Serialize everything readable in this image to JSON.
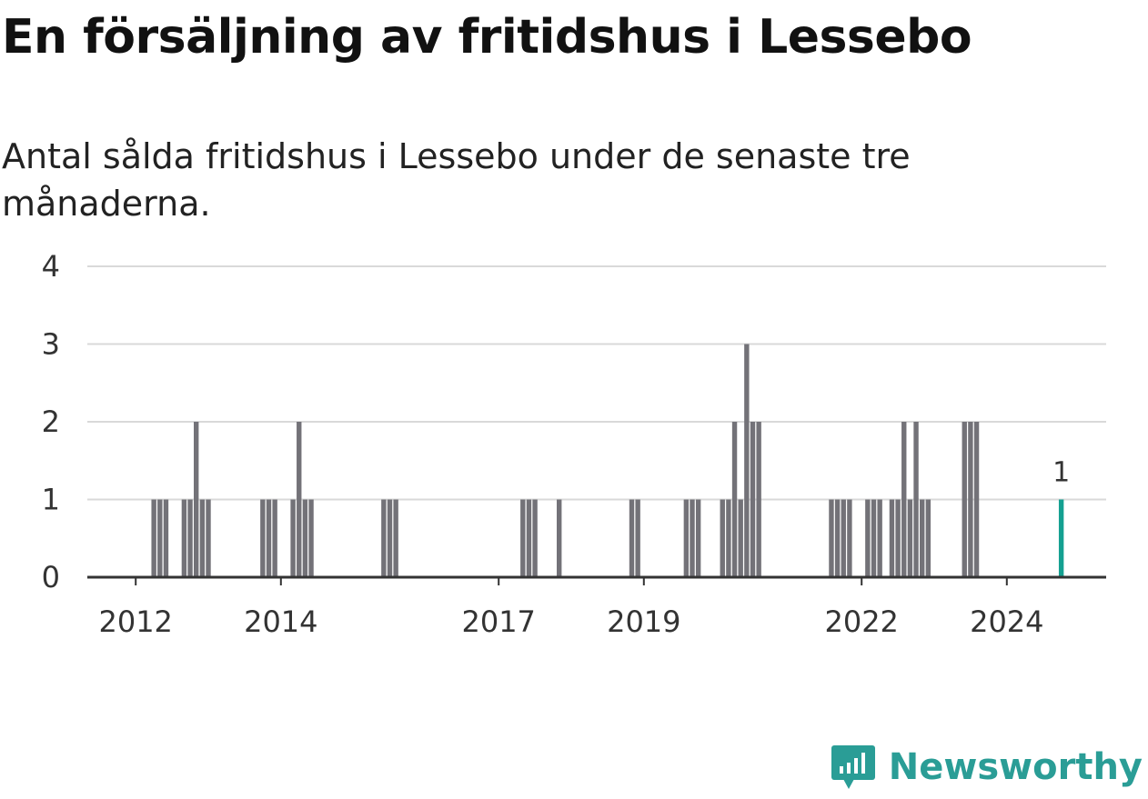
{
  "title": "En försäljning av fritidshus i Lessebo",
  "subtitle": "Antal sålda fritidshus i Lessebo under de senaste tre månaderna.",
  "brand": {
    "name": "Newsworthy",
    "icon": "newsworthy-logo-icon",
    "color": "#2a9d96"
  },
  "colors": {
    "bar": "#737278",
    "highlight": "#14a091",
    "grid": "#d9d9d9",
    "axis": "#333333"
  },
  "chart_data": {
    "type": "bar",
    "x_unit": "month",
    "ylim": [
      0,
      4
    ],
    "yticks": [
      0,
      1,
      2,
      3,
      4
    ],
    "xtick_labels": [
      "2012",
      "2014",
      "2017",
      "2019",
      "2022",
      "2024"
    ],
    "grid": true,
    "annotation": {
      "label": "1",
      "x": "2024-10",
      "y": 1
    },
    "highlight": "2024-10",
    "values": [
      {
        "x": "2012-04",
        "y": 1
      },
      {
        "x": "2012-05",
        "y": 1
      },
      {
        "x": "2012-06",
        "y": 1
      },
      {
        "x": "2012-09",
        "y": 1
      },
      {
        "x": "2012-10",
        "y": 1
      },
      {
        "x": "2012-11",
        "y": 2
      },
      {
        "x": "2012-12",
        "y": 1
      },
      {
        "x": "2013-01",
        "y": 1
      },
      {
        "x": "2013-10",
        "y": 1
      },
      {
        "x": "2013-11",
        "y": 1
      },
      {
        "x": "2013-12",
        "y": 1
      },
      {
        "x": "2014-03",
        "y": 1
      },
      {
        "x": "2014-04",
        "y": 2
      },
      {
        "x": "2014-05",
        "y": 1
      },
      {
        "x": "2014-06",
        "y": 1
      },
      {
        "x": "2015-06",
        "y": 1
      },
      {
        "x": "2015-07",
        "y": 1
      },
      {
        "x": "2015-08",
        "y": 1
      },
      {
        "x": "2017-05",
        "y": 1
      },
      {
        "x": "2017-06",
        "y": 1
      },
      {
        "x": "2017-07",
        "y": 1
      },
      {
        "x": "2017-11",
        "y": 1
      },
      {
        "x": "2018-11",
        "y": 1
      },
      {
        "x": "2018-12",
        "y": 1
      },
      {
        "x": "2019-08",
        "y": 1
      },
      {
        "x": "2019-09",
        "y": 1
      },
      {
        "x": "2019-10",
        "y": 1
      },
      {
        "x": "2020-02",
        "y": 1
      },
      {
        "x": "2020-03",
        "y": 1
      },
      {
        "x": "2020-04",
        "y": 2
      },
      {
        "x": "2020-05",
        "y": 1
      },
      {
        "x": "2020-06",
        "y": 3
      },
      {
        "x": "2020-07",
        "y": 2
      },
      {
        "x": "2020-08",
        "y": 2
      },
      {
        "x": "2021-08",
        "y": 1
      },
      {
        "x": "2021-09",
        "y": 1
      },
      {
        "x": "2021-10",
        "y": 1
      },
      {
        "x": "2021-11",
        "y": 1
      },
      {
        "x": "2022-02",
        "y": 1
      },
      {
        "x": "2022-03",
        "y": 1
      },
      {
        "x": "2022-04",
        "y": 1
      },
      {
        "x": "2022-06",
        "y": 1
      },
      {
        "x": "2022-07",
        "y": 1
      },
      {
        "x": "2022-08",
        "y": 2
      },
      {
        "x": "2022-09",
        "y": 1
      },
      {
        "x": "2022-10",
        "y": 2
      },
      {
        "x": "2022-11",
        "y": 1
      },
      {
        "x": "2022-12",
        "y": 1
      },
      {
        "x": "2023-06",
        "y": 2
      },
      {
        "x": "2023-07",
        "y": 2
      },
      {
        "x": "2023-08",
        "y": 2
      },
      {
        "x": "2024-10",
        "y": 1
      }
    ]
  }
}
